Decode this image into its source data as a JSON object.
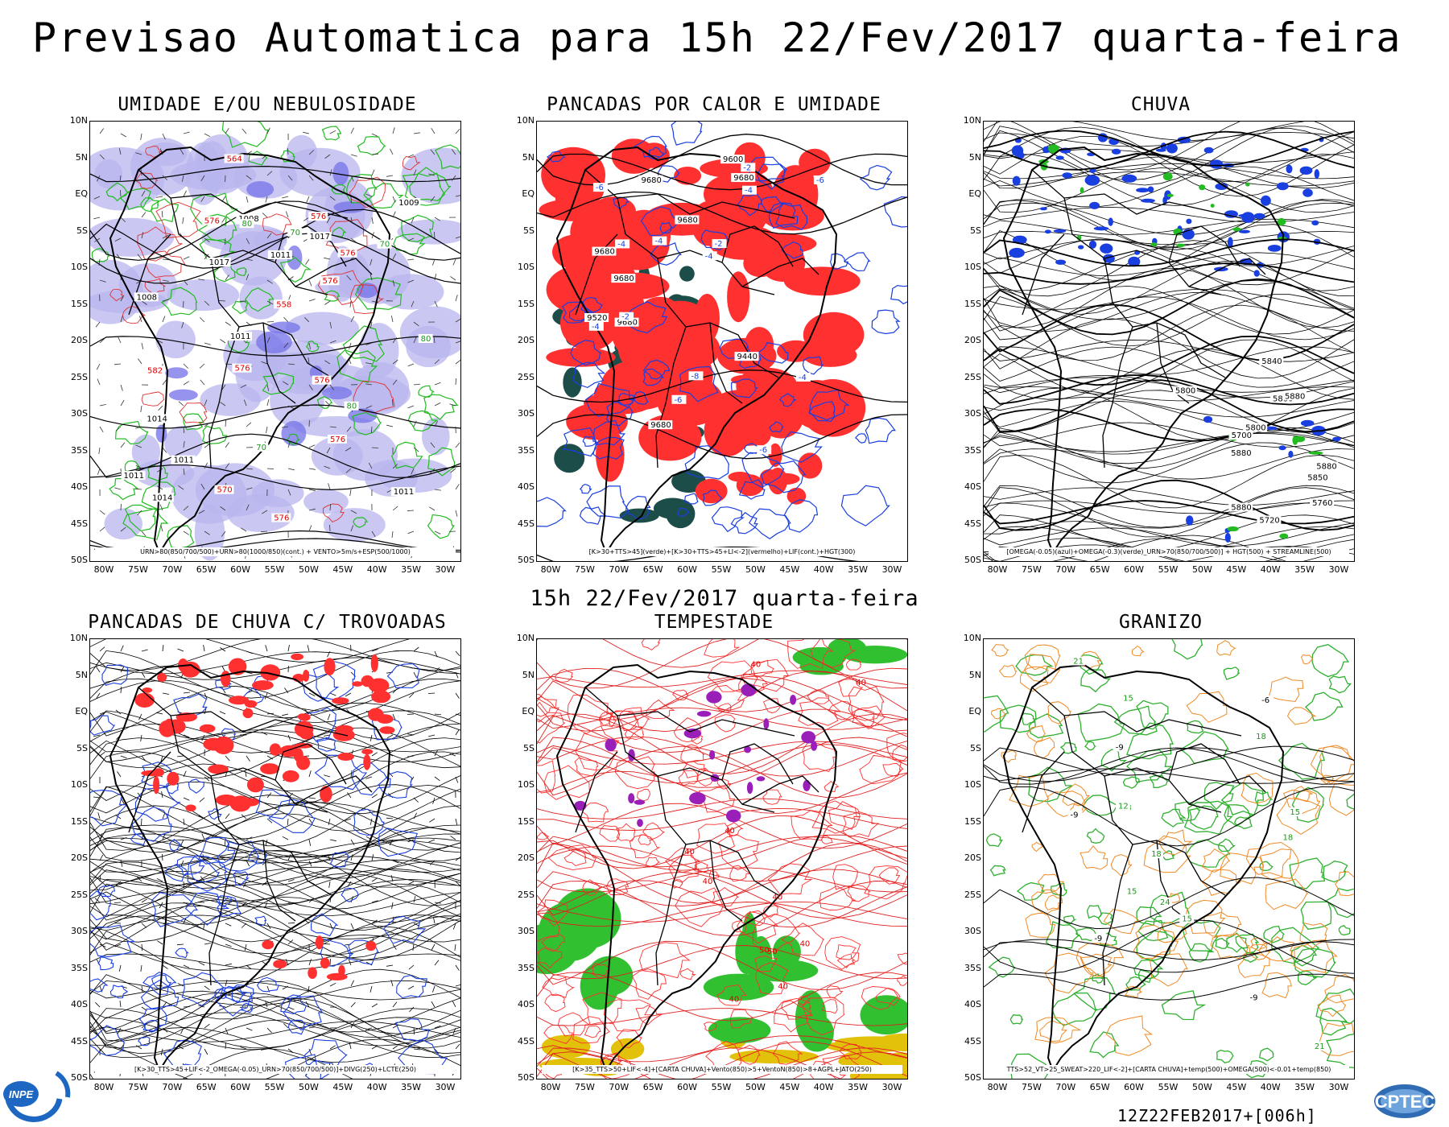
{
  "header": {
    "title": "Previsao Automatica  para 15h 22/Fev/2017 quarta-feira",
    "mid_title": "15h 22/Fev/2017 quarta-feira"
  },
  "axes": {
    "lat_labels": [
      "10N",
      "5N",
      "EQ",
      "5S",
      "10S",
      "15S",
      "20S",
      "25S",
      "30S",
      "35S",
      "40S",
      "45S",
      "50S"
    ],
    "lon_labels": [
      "80W",
      "75W",
      "70W",
      "65W",
      "60W",
      "55W",
      "50W",
      "45W",
      "40W",
      "35W",
      "30W"
    ]
  },
  "panels": [
    {
      "id": "umidade",
      "title": "UMIDADE E/OU NEBULOSIDADE",
      "caption": "URN>80(850/700/500)+URN>80(1000/850)(cont.) + VENTO>5m/s+ESP(500/1000)",
      "layer": "humidity",
      "contours": [
        "1011",
        "1008",
        "1009",
        "1011",
        "1017",
        "1014",
        "1008",
        "1011",
        "1014",
        "1017",
        "1011",
        "1011"
      ],
      "red_labels": [
        "576",
        "576",
        "576",
        "576",
        "576",
        "576",
        "576",
        "582",
        "576",
        "570",
        "564",
        "558"
      ],
      "green_labels": [
        "80",
        "80",
        "70",
        "70",
        "80",
        "70"
      ]
    },
    {
      "id": "pancadas-calor",
      "title": "PANCADAS POR CALOR E UMIDADE",
      "caption": "[K>30+TTS>45](verde)+[K>30+TTS>45+LI<-2](vermelho)+LIF(cont.)+HGT(300)",
      "layer": "heat",
      "contours": [
        "9680",
        "9680",
        "9680",
        "9680",
        "9680",
        "9680",
        "9680",
        "9600",
        "9520",
        "9440"
      ],
      "blue_labels": [
        "-4",
        "-4",
        "-6",
        "-4",
        "-2",
        "-6",
        "-4",
        "-4",
        "-2",
        "-6",
        "-4",
        "-8",
        "-6",
        "-2"
      ]
    },
    {
      "id": "chuva",
      "title": "CHUVA",
      "caption": "[OMEGA(-0.05)(azul)+OMEGA(-0.3)(verde)_URN>70(850/700/500)] + HGT(500) + STREAMLINE(500)",
      "layer": "rain",
      "contours": [
        "5880",
        "5880",
        "5880",
        "5850",
        "5880",
        "5840",
        "5880",
        "5800",
        "5760",
        "5720",
        "5800",
        "5700"
      ]
    },
    {
      "id": "pancadas-trovoadas",
      "title": "PANCADAS DE CHUVA C/ TROVOADAS",
      "caption": "[K>30_TTS>45+LIF<-2_OMEGA(-0.05)_URN>70(850/700/500)]+DIVG(250)+LCTE(250)",
      "layer": "storms"
    },
    {
      "id": "tempestade",
      "title": "TEMPESTADE",
      "caption": "[K>35_TTS>50+LIF<-4]+[CARTA CHUVA]+Vento(850)>5+VentoN(850)>8+AGPL+JATO(250)",
      "layer": "tempest",
      "red_labels": [
        "40",
        "40",
        "40",
        "50",
        "40",
        "40",
        "40",
        "40",
        "40",
        "50",
        "40"
      ]
    },
    {
      "id": "granizo",
      "title": "GRANIZO",
      "caption": "TTS>52_VT>25_SWEAT>220_LIF<-2]+[CARTA CHUVA]+temp(500)+OMEGA(500)<-0.01+temp(850)",
      "layer": "hail",
      "green_labels": [
        "18",
        "18",
        "15",
        "21",
        "18",
        "15",
        "12",
        "15",
        "21",
        "24",
        "18",
        "15"
      ],
      "black_labels": [
        "-6",
        "-9",
        "-9",
        "-9",
        "-9"
      ]
    }
  ],
  "footer": {
    "run_label": "12Z22FEB2017+[006h]",
    "logo_left": "INPE",
    "logo_right": "CPTEC"
  },
  "colors": {
    "blue": "#1a3fe0",
    "red": "#ff3030",
    "green": "#22bb22",
    "darkteal": "#1d4d49",
    "lavender": "#b8b6ee",
    "purple": "#9a1fb8",
    "yellow": "#e2c10a",
    "orange": "#ef8a25"
  }
}
